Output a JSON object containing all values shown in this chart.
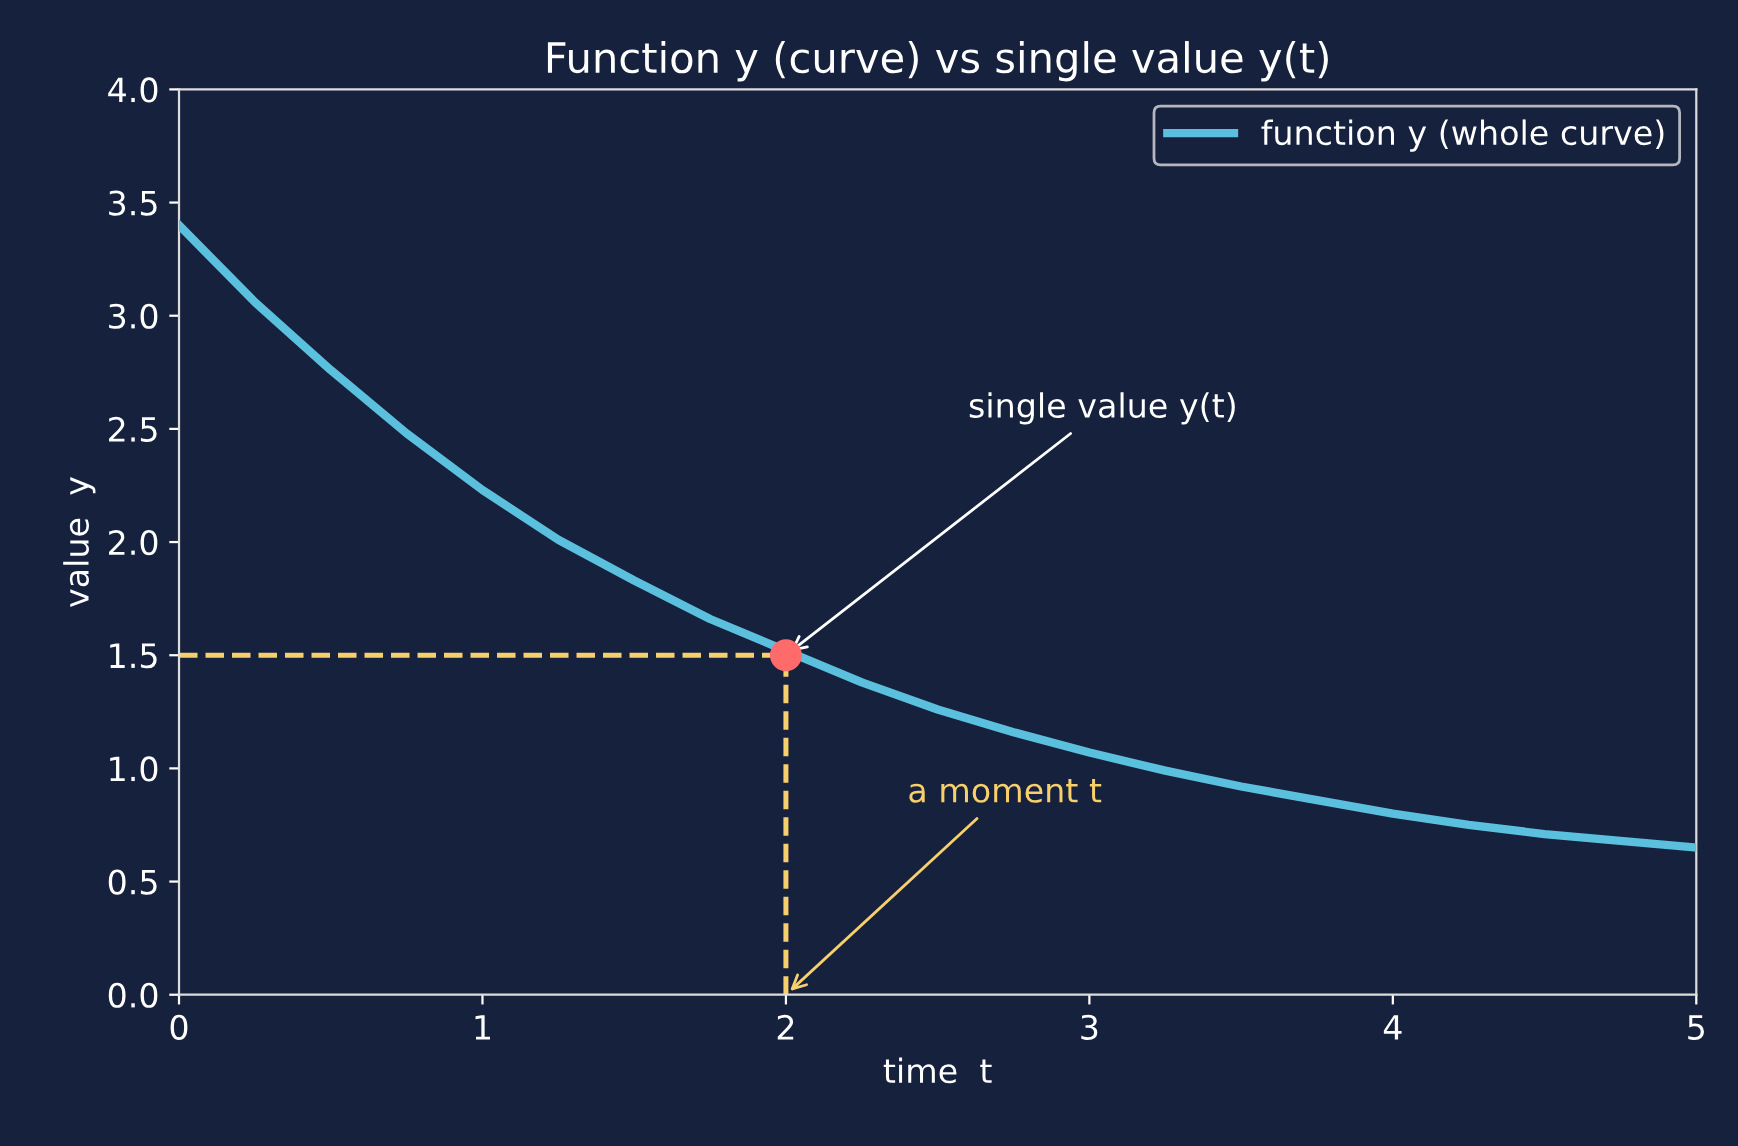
{
  "chart_data": {
    "type": "line",
    "title": "Function y (curve) vs single value y(t)",
    "xlabel": "time  t",
    "ylabel": "value  y",
    "xlim": [
      0,
      5
    ],
    "ylim": [
      0,
      4
    ],
    "xticks": [
      0,
      1,
      2,
      3,
      4,
      5
    ],
    "yticks": [
      {
        "value": 0,
        "label": "0.0"
      },
      0.5,
      {
        "value": 1,
        "label": "1.0"
      },
      1.5,
      {
        "value": 2,
        "label": "2.0"
      },
      2.5,
      {
        "value": 3,
        "label": "3.0"
      },
      3.5,
      {
        "value": 4,
        "label": "4.0"
      }
    ],
    "series": [
      {
        "name": "function y (whole curve)",
        "color": "#5bc0de",
        "x": [
          0,
          0.25,
          0.5,
          0.75,
          1,
          1.25,
          1.5,
          1.75,
          2.25,
          2.5,
          2.75,
          3,
          3.25,
          3.5,
          3.75,
          4,
          4.25,
          4.5,
          4.75,
          5
        ],
        "values": [
          3.4,
          3.06,
          2.76,
          2.48,
          2.23,
          2.01,
          1.83,
          1.66,
          1.38,
          1.26,
          1.16,
          1.07,
          0.99,
          0.92,
          0.86,
          0.8,
          0.75,
          0.71,
          0.68,
          0.65
        ]
      },
      {
        "type": "scatter",
        "color": "#ff6b6b",
        "x": [
          2
        ],
        "values": [
          1.5
        ],
        "marker": "circle"
      }
    ],
    "ref_lines": [
      {
        "axis": "y",
        "value": 1.5,
        "color": "#f7d06b",
        "line_style": "dashed"
      },
      {
        "axis": "x",
        "value": 2,
        "color": "#f7d06b",
        "line_style": "dashed"
      }
    ],
    "annotations": [
      {
        "text": "single value y(t)",
        "x": 2,
        "y": 1.5
      },
      {
        "text": "a moment t",
        "x": 2,
        "y": 0
      }
    ],
    "legend": "top right",
    "grid": false
  }
}
